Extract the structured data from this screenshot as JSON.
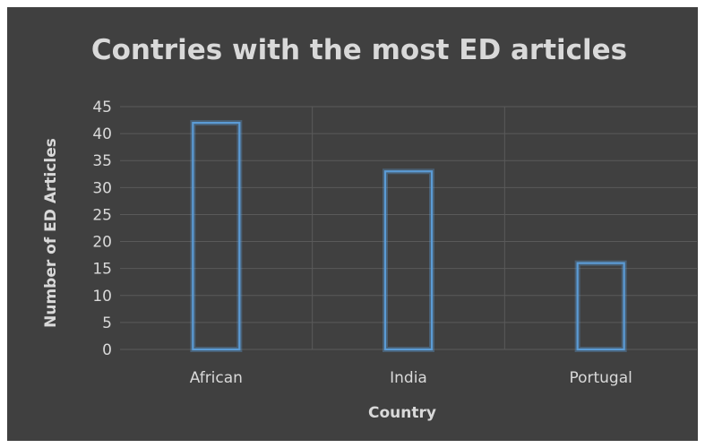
{
  "chart_data": {
    "type": "bar",
    "title": "Contries with the most ED articles",
    "xlabel": "Country",
    "ylabel": "Number of ED Articles",
    "categories": [
      "African",
      "India",
      "Portugal"
    ],
    "values": [
      42,
      33,
      16
    ],
    "ylim": [
      0,
      45
    ],
    "yticks": [
      0,
      5,
      10,
      15,
      20,
      25,
      30,
      35,
      40,
      45
    ],
    "grid": true,
    "legend": "none",
    "colors": {
      "background": "#404040",
      "bar_outline": "#5b9bd5",
      "text": "#d9d9d9",
      "gridline": "#5a5a5a"
    }
  }
}
